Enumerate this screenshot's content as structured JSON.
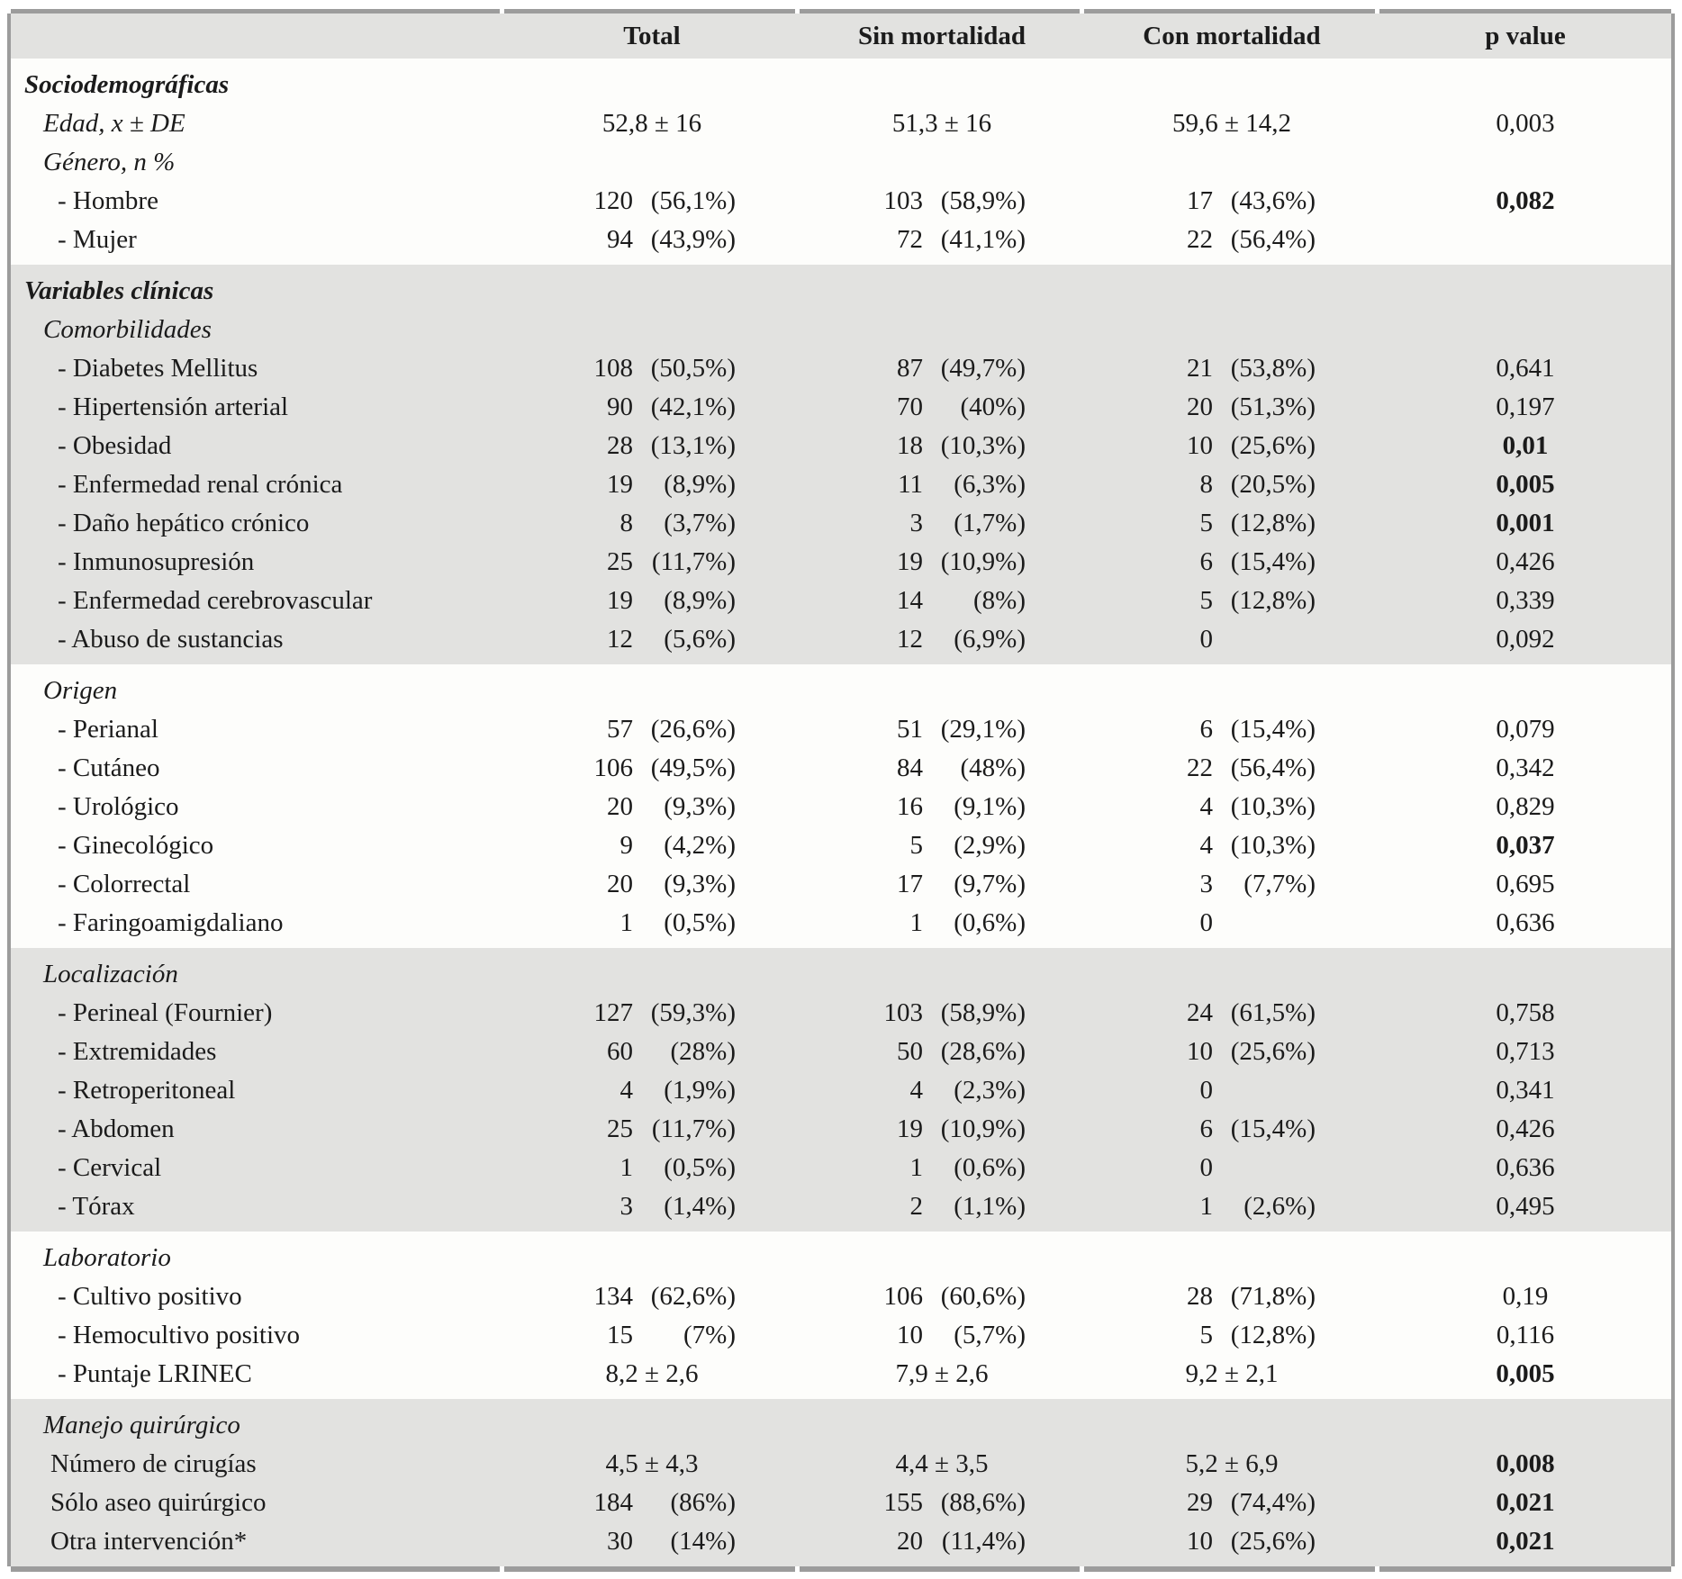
{
  "table": {
    "columns": [
      "",
      "Total",
      "Sin mortalidad",
      "Con mortalidad",
      "p value"
    ],
    "colors": {
      "band_gray": "#e2e2e0",
      "row_white": "#fdfdfb",
      "border_gray": "#9c9c9c"
    },
    "sections": [
      {
        "shade": "white",
        "rows": [
          {
            "t": "section",
            "label": "Sociodemográficas",
            "cells": [
              null,
              null,
              null,
              null
            ]
          },
          {
            "t": "group",
            "label": "Edad, x ± DE",
            "cells": [
              {
                "c": "52,8 ± 16"
              },
              {
                "c": "51,3 ± 16"
              },
              {
                "c": "59,6 ± 14,2"
              },
              {
                "v": "0,003"
              }
            ]
          },
          {
            "t": "group",
            "label": "Género, n %",
            "cells": [
              null,
              null,
              null,
              null
            ]
          },
          {
            "t": "item",
            "label": "- Hombre",
            "cells": [
              {
                "n": "120",
                "p": "(56,1%)"
              },
              {
                "n": "103",
                "p": "(58,9%)"
              },
              {
                "n": "17",
                "p": "(43,6%)"
              },
              {
                "v": "0,082",
                "b": true
              }
            ]
          },
          {
            "t": "item",
            "label": "- Mujer",
            "cells": [
              {
                "n": "94",
                "p": "(43,9%)"
              },
              {
                "n": "72",
                "p": "(41,1%)"
              },
              {
                "n": "22",
                "p": "(56,4%)"
              },
              null
            ]
          }
        ]
      },
      {
        "shade": "gray",
        "rows": [
          {
            "t": "section",
            "label": "Variables clínicas",
            "cells": [
              null,
              null,
              null,
              null
            ]
          },
          {
            "t": "group",
            "label": "Comorbilidades",
            "cells": [
              null,
              null,
              null,
              null
            ]
          },
          {
            "t": "item",
            "label": "- Diabetes Mellitus",
            "cells": [
              {
                "n": "108",
                "p": "(50,5%)"
              },
              {
                "n": "87",
                "p": "(49,7%)"
              },
              {
                "n": "21",
                "p": "(53,8%)"
              },
              {
                "v": "0,641"
              }
            ]
          },
          {
            "t": "item",
            "label": "- Hipertensión arterial",
            "cells": [
              {
                "n": "90",
                "p": "(42,1%)"
              },
              {
                "n": "70",
                "p": "(40%)"
              },
              {
                "n": "20",
                "p": "(51,3%)"
              },
              {
                "v": "0,197"
              }
            ]
          },
          {
            "t": "item",
            "label": "- Obesidad",
            "cells": [
              {
                "n": "28",
                "p": "(13,1%)"
              },
              {
                "n": "18",
                "p": "(10,3%)"
              },
              {
                "n": "10",
                "p": "(25,6%)"
              },
              {
                "v": "0,01",
                "b": true
              }
            ]
          },
          {
            "t": "item",
            "label": "- Enfermedad renal crónica",
            "cells": [
              {
                "n": "19",
                "p": "(8,9%)"
              },
              {
                "n": "11",
                "p": "(6,3%)"
              },
              {
                "n": "8",
                "p": "(20,5%)"
              },
              {
                "v": "0,005",
                "b": true
              }
            ]
          },
          {
            "t": "item",
            "label": "- Daño hepático crónico",
            "cells": [
              {
                "n": "8",
                "p": "(3,7%)"
              },
              {
                "n": "3",
                "p": "(1,7%)"
              },
              {
                "n": "5",
                "p": "(12,8%)"
              },
              {
                "v": "0,001",
                "b": true
              }
            ]
          },
          {
            "t": "item",
            "label": "- Inmunosupresión",
            "cells": [
              {
                "n": "25",
                "p": "(11,7%)"
              },
              {
                "n": "19",
                "p": "(10,9%)"
              },
              {
                "n": "6",
                "p": "(15,4%)"
              },
              {
                "v": "0,426"
              }
            ]
          },
          {
            "t": "item",
            "label": "- Enfermedad cerebrovascular",
            "cells": [
              {
                "n": "19",
                "p": "(8,9%)"
              },
              {
                "n": "14",
                "p": "(8%)"
              },
              {
                "n": "5",
                "p": "(12,8%)"
              },
              {
                "v": "0,339"
              }
            ]
          },
          {
            "t": "item",
            "label": "- Abuso de sustancias",
            "cells": [
              {
                "n": "12",
                "p": "(5,6%)"
              },
              {
                "n": "12",
                "p": "(6,9%)"
              },
              {
                "n": "0"
              },
              {
                "v": "0,092"
              }
            ]
          }
        ]
      },
      {
        "shade": "white",
        "rows": [
          {
            "t": "group",
            "label": "Origen",
            "cells": [
              null,
              null,
              null,
              null
            ]
          },
          {
            "t": "item",
            "label": "- Perianal",
            "cells": [
              {
                "n": "57",
                "p": "(26,6%)"
              },
              {
                "n": "51",
                "p": "(29,1%)"
              },
              {
                "n": "6",
                "p": "(15,4%)"
              },
              {
                "v": "0,079"
              }
            ]
          },
          {
            "t": "item",
            "label": "- Cutáneo",
            "cells": [
              {
                "n": "106",
                "p": "(49,5%)"
              },
              {
                "n": "84",
                "p": "(48%)"
              },
              {
                "n": "22",
                "p": "(56,4%)"
              },
              {
                "v": "0,342"
              }
            ]
          },
          {
            "t": "item",
            "label": "- Urológico",
            "cells": [
              {
                "n": "20",
                "p": "(9,3%)"
              },
              {
                "n": "16",
                "p": "(9,1%)"
              },
              {
                "n": "4",
                "p": "(10,3%)"
              },
              {
                "v": "0,829"
              }
            ]
          },
          {
            "t": "item",
            "label": "- Ginecológico",
            "cells": [
              {
                "n": "9",
                "p": "(4,2%)"
              },
              {
                "n": "5",
                "p": "(2,9%)"
              },
              {
                "n": "4",
                "p": "(10,3%)"
              },
              {
                "v": "0,037",
                "b": true
              }
            ]
          },
          {
            "t": "item",
            "label": "- Colorrectal",
            "cells": [
              {
                "n": "20",
                "p": "(9,3%)"
              },
              {
                "n": "17",
                "p": "(9,7%)"
              },
              {
                "n": "3",
                "p": "(7,7%)"
              },
              {
                "v": "0,695"
              }
            ]
          },
          {
            "t": "item",
            "label": "- Faringoamigdaliano",
            "cells": [
              {
                "n": "1",
                "p": "(0,5%)"
              },
              {
                "n": "1",
                "p": "(0,6%)"
              },
              {
                "n": "0"
              },
              {
                "v": "0,636"
              }
            ]
          }
        ]
      },
      {
        "shade": "gray",
        "rows": [
          {
            "t": "group",
            "label": "Localización",
            "cells": [
              null,
              null,
              null,
              null
            ]
          },
          {
            "t": "item",
            "label": "- Perineal (Fournier)",
            "cells": [
              {
                "n": "127",
                "p": "(59,3%)"
              },
              {
                "n": "103",
                "p": "(58,9%)"
              },
              {
                "n": "24",
                "p": "(61,5%)"
              },
              {
                "v": "0,758"
              }
            ]
          },
          {
            "t": "item",
            "label": "- Extremidades",
            "cells": [
              {
                "n": "60",
                "p": "(28%)"
              },
              {
                "n": "50",
                "p": "(28,6%)"
              },
              {
                "n": "10",
                "p": "(25,6%)"
              },
              {
                "v": "0,713"
              }
            ]
          },
          {
            "t": "item",
            "label": "- Retroperitoneal",
            "cells": [
              {
                "n": "4",
                "p": "(1,9%)"
              },
              {
                "n": "4",
                "p": "(2,3%)"
              },
              {
                "n": "0"
              },
              {
                "v": "0,341"
              }
            ]
          },
          {
            "t": "item",
            "label": "- Abdomen",
            "cells": [
              {
                "n": "25",
                "p": "(11,7%)"
              },
              {
                "n": "19",
                "p": "(10,9%)"
              },
              {
                "n": "6",
                "p": "(15,4%)"
              },
              {
                "v": "0,426"
              }
            ]
          },
          {
            "t": "item",
            "label": "- Cervical",
            "cells": [
              {
                "n": "1",
                "p": "(0,5%)"
              },
              {
                "n": "1",
                "p": "(0,6%)"
              },
              {
                "n": "0"
              },
              {
                "v": "0,636"
              }
            ]
          },
          {
            "t": "item",
            "label": "- Tórax",
            "cells": [
              {
                "n": "3",
                "p": "(1,4%)"
              },
              {
                "n": "2",
                "p": "(1,1%)"
              },
              {
                "n": "1",
                "p": "(2,6%)"
              },
              {
                "v": "0,495"
              }
            ]
          }
        ]
      },
      {
        "shade": "white",
        "rows": [
          {
            "t": "group",
            "label": "Laboratorio",
            "cells": [
              null,
              null,
              null,
              null
            ]
          },
          {
            "t": "item",
            "label": "- Cultivo positivo",
            "cells": [
              {
                "n": "134",
                "p": "(62,6%)"
              },
              {
                "n": "106",
                "p": "(60,6%)"
              },
              {
                "n": "28",
                "p": "(71,8%)"
              },
              {
                "v": "0,19"
              }
            ]
          },
          {
            "t": "item",
            "label": "- Hemocultivo positivo",
            "cells": [
              {
                "n": "15",
                "p": "(7%)"
              },
              {
                "n": "10",
                "p": "(5,7%)"
              },
              {
                "n": "5",
                "p": "(12,8%)"
              },
              {
                "v": "0,116"
              }
            ]
          },
          {
            "t": "item",
            "label": "- Puntaje LRINEC",
            "cells": [
              {
                "c": "8,2 ± 2,6"
              },
              {
                "c": "7,9 ± 2,6"
              },
              {
                "c": "9,2 ± 2,1"
              },
              {
                "v": "0,005",
                "b": true
              }
            ]
          }
        ]
      },
      {
        "shade": "gray",
        "rows": [
          {
            "t": "group",
            "label": "Manejo quirúrgico",
            "cells": [
              null,
              null,
              null,
              null
            ]
          },
          {
            "t": "item2",
            "label": "Número de cirugías",
            "cells": [
              {
                "c": "4,5 ± 4,3"
              },
              {
                "c": "4,4 ± 3,5"
              },
              {
                "c": "5,2 ± 6,9"
              },
              {
                "v": "0,008",
                "b": true
              }
            ]
          },
          {
            "t": "item2",
            "label": "Sólo aseo quirúrgico",
            "cells": [
              {
                "n": "184",
                "p": "(86%)"
              },
              {
                "n": "155",
                "p": "(88,6%)"
              },
              {
                "n": "29",
                "p": "(74,4%)"
              },
              {
                "v": "0,021",
                "b": true
              }
            ]
          },
          {
            "t": "item2",
            "label": "Otra intervención*",
            "cells": [
              {
                "n": "30",
                "p": "(14%)"
              },
              {
                "n": "20",
                "p": "(11,4%)"
              },
              {
                "n": "10",
                "p": "(25,6%)"
              },
              {
                "v": "0,021",
                "b": true
              }
            ]
          }
        ]
      }
    ]
  }
}
